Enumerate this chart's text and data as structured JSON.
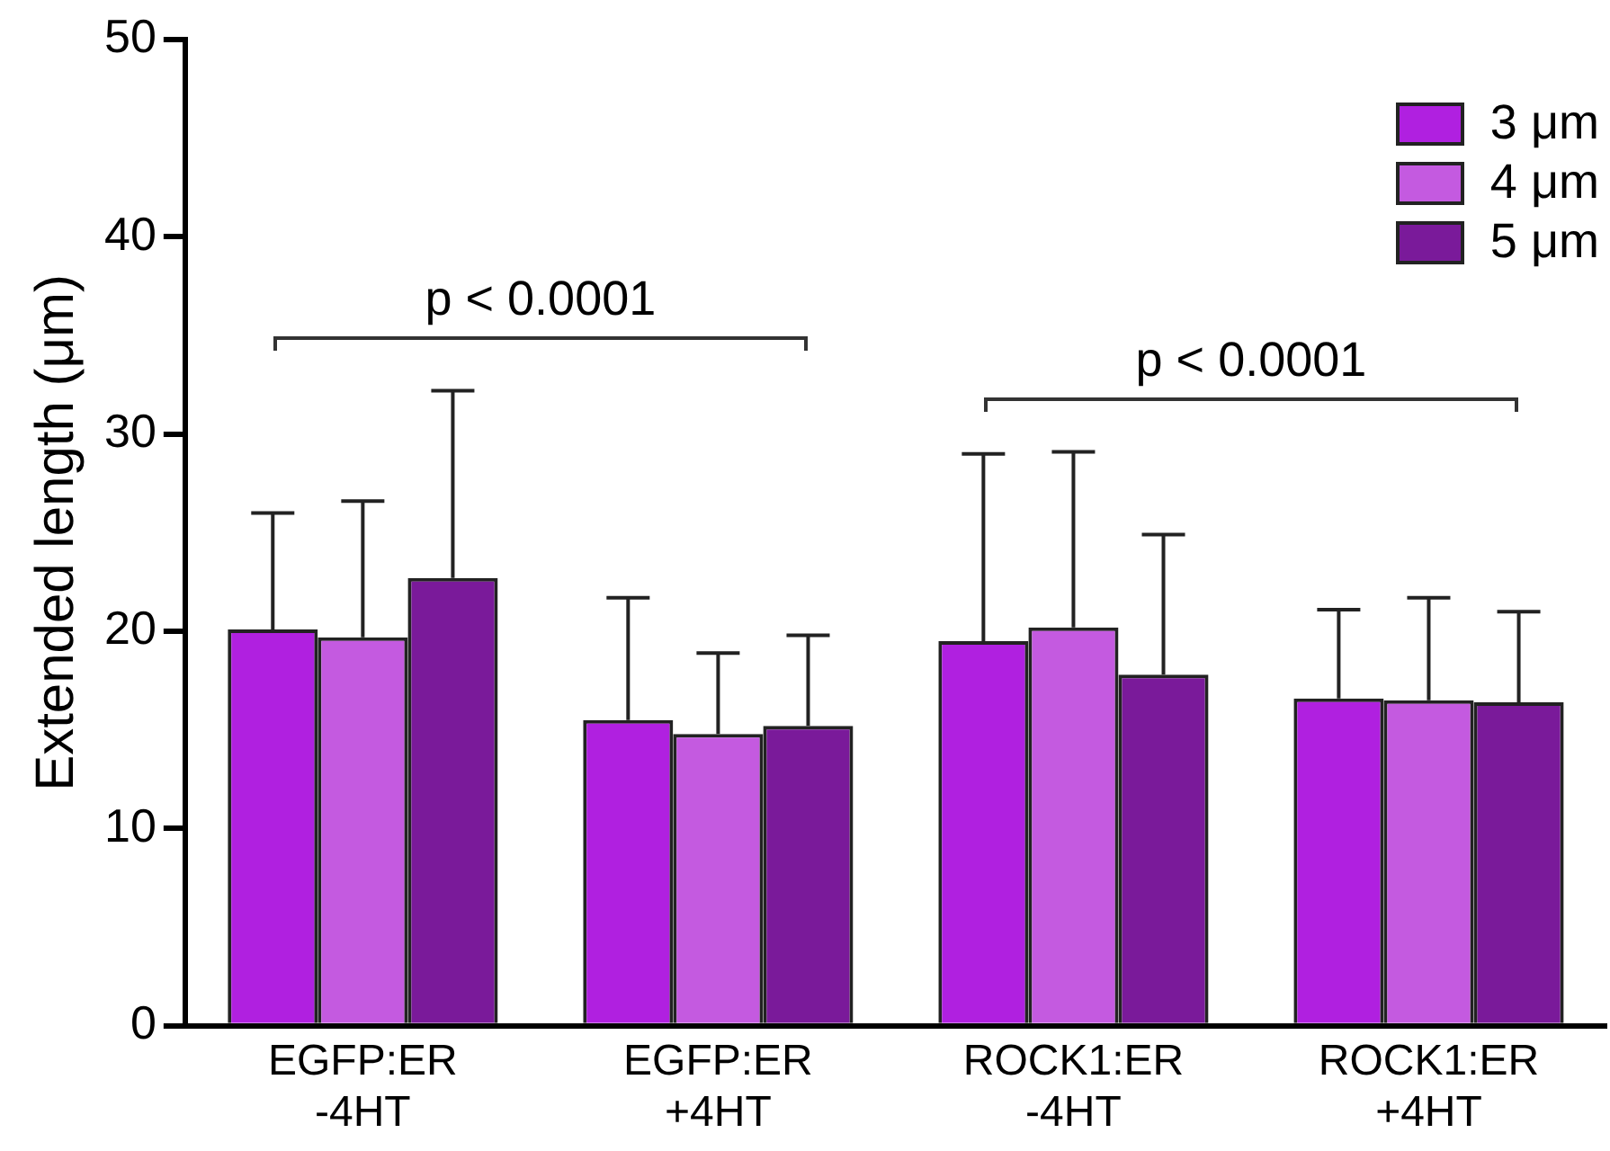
{
  "chart_data": {
    "type": "bar",
    "ylabel": "Extended length (μm)",
    "categories": [
      "EGFP:ER\n-4HT",
      "EGFP:ER\n+4HT",
      "ROCK1:ER\n-4HT",
      "ROCK1:ER\n+4HT"
    ],
    "series": [
      {
        "name": "3 μm",
        "color": "#b020e0",
        "values": [
          20.1,
          15.5,
          19.5,
          16.6
        ],
        "errors": [
          [
            20.1,
            26.0
          ],
          [
            15.5,
            21.7
          ],
          [
            19.5,
            29.0
          ],
          [
            16.6,
            21.1
          ]
        ]
      },
      {
        "name": "4 μm",
        "color": "#c45ae0",
        "values": [
          19.7,
          14.8,
          20.2,
          16.5
        ],
        "errors": [
          [
            19.7,
            26.6
          ],
          [
            14.8,
            18.9
          ],
          [
            20.2,
            29.1
          ],
          [
            16.5,
            21.7
          ]
        ]
      },
      {
        "name": "5 μm",
        "color": "#7a1a9a",
        "values": [
          22.7,
          15.2,
          17.8,
          16.4
        ],
        "errors": [
          [
            22.7,
            32.2
          ],
          [
            15.2,
            19.8
          ],
          [
            17.8,
            24.9
          ],
          [
            16.4,
            21.0
          ]
        ]
      }
    ],
    "ylim": [
      0,
      50
    ],
    "yticks": [
      0,
      10,
      20,
      30,
      40,
      50
    ],
    "grid": false,
    "legend": "top right",
    "annotations": [
      "p < 0.0001",
      "p < 0.0001"
    ]
  }
}
